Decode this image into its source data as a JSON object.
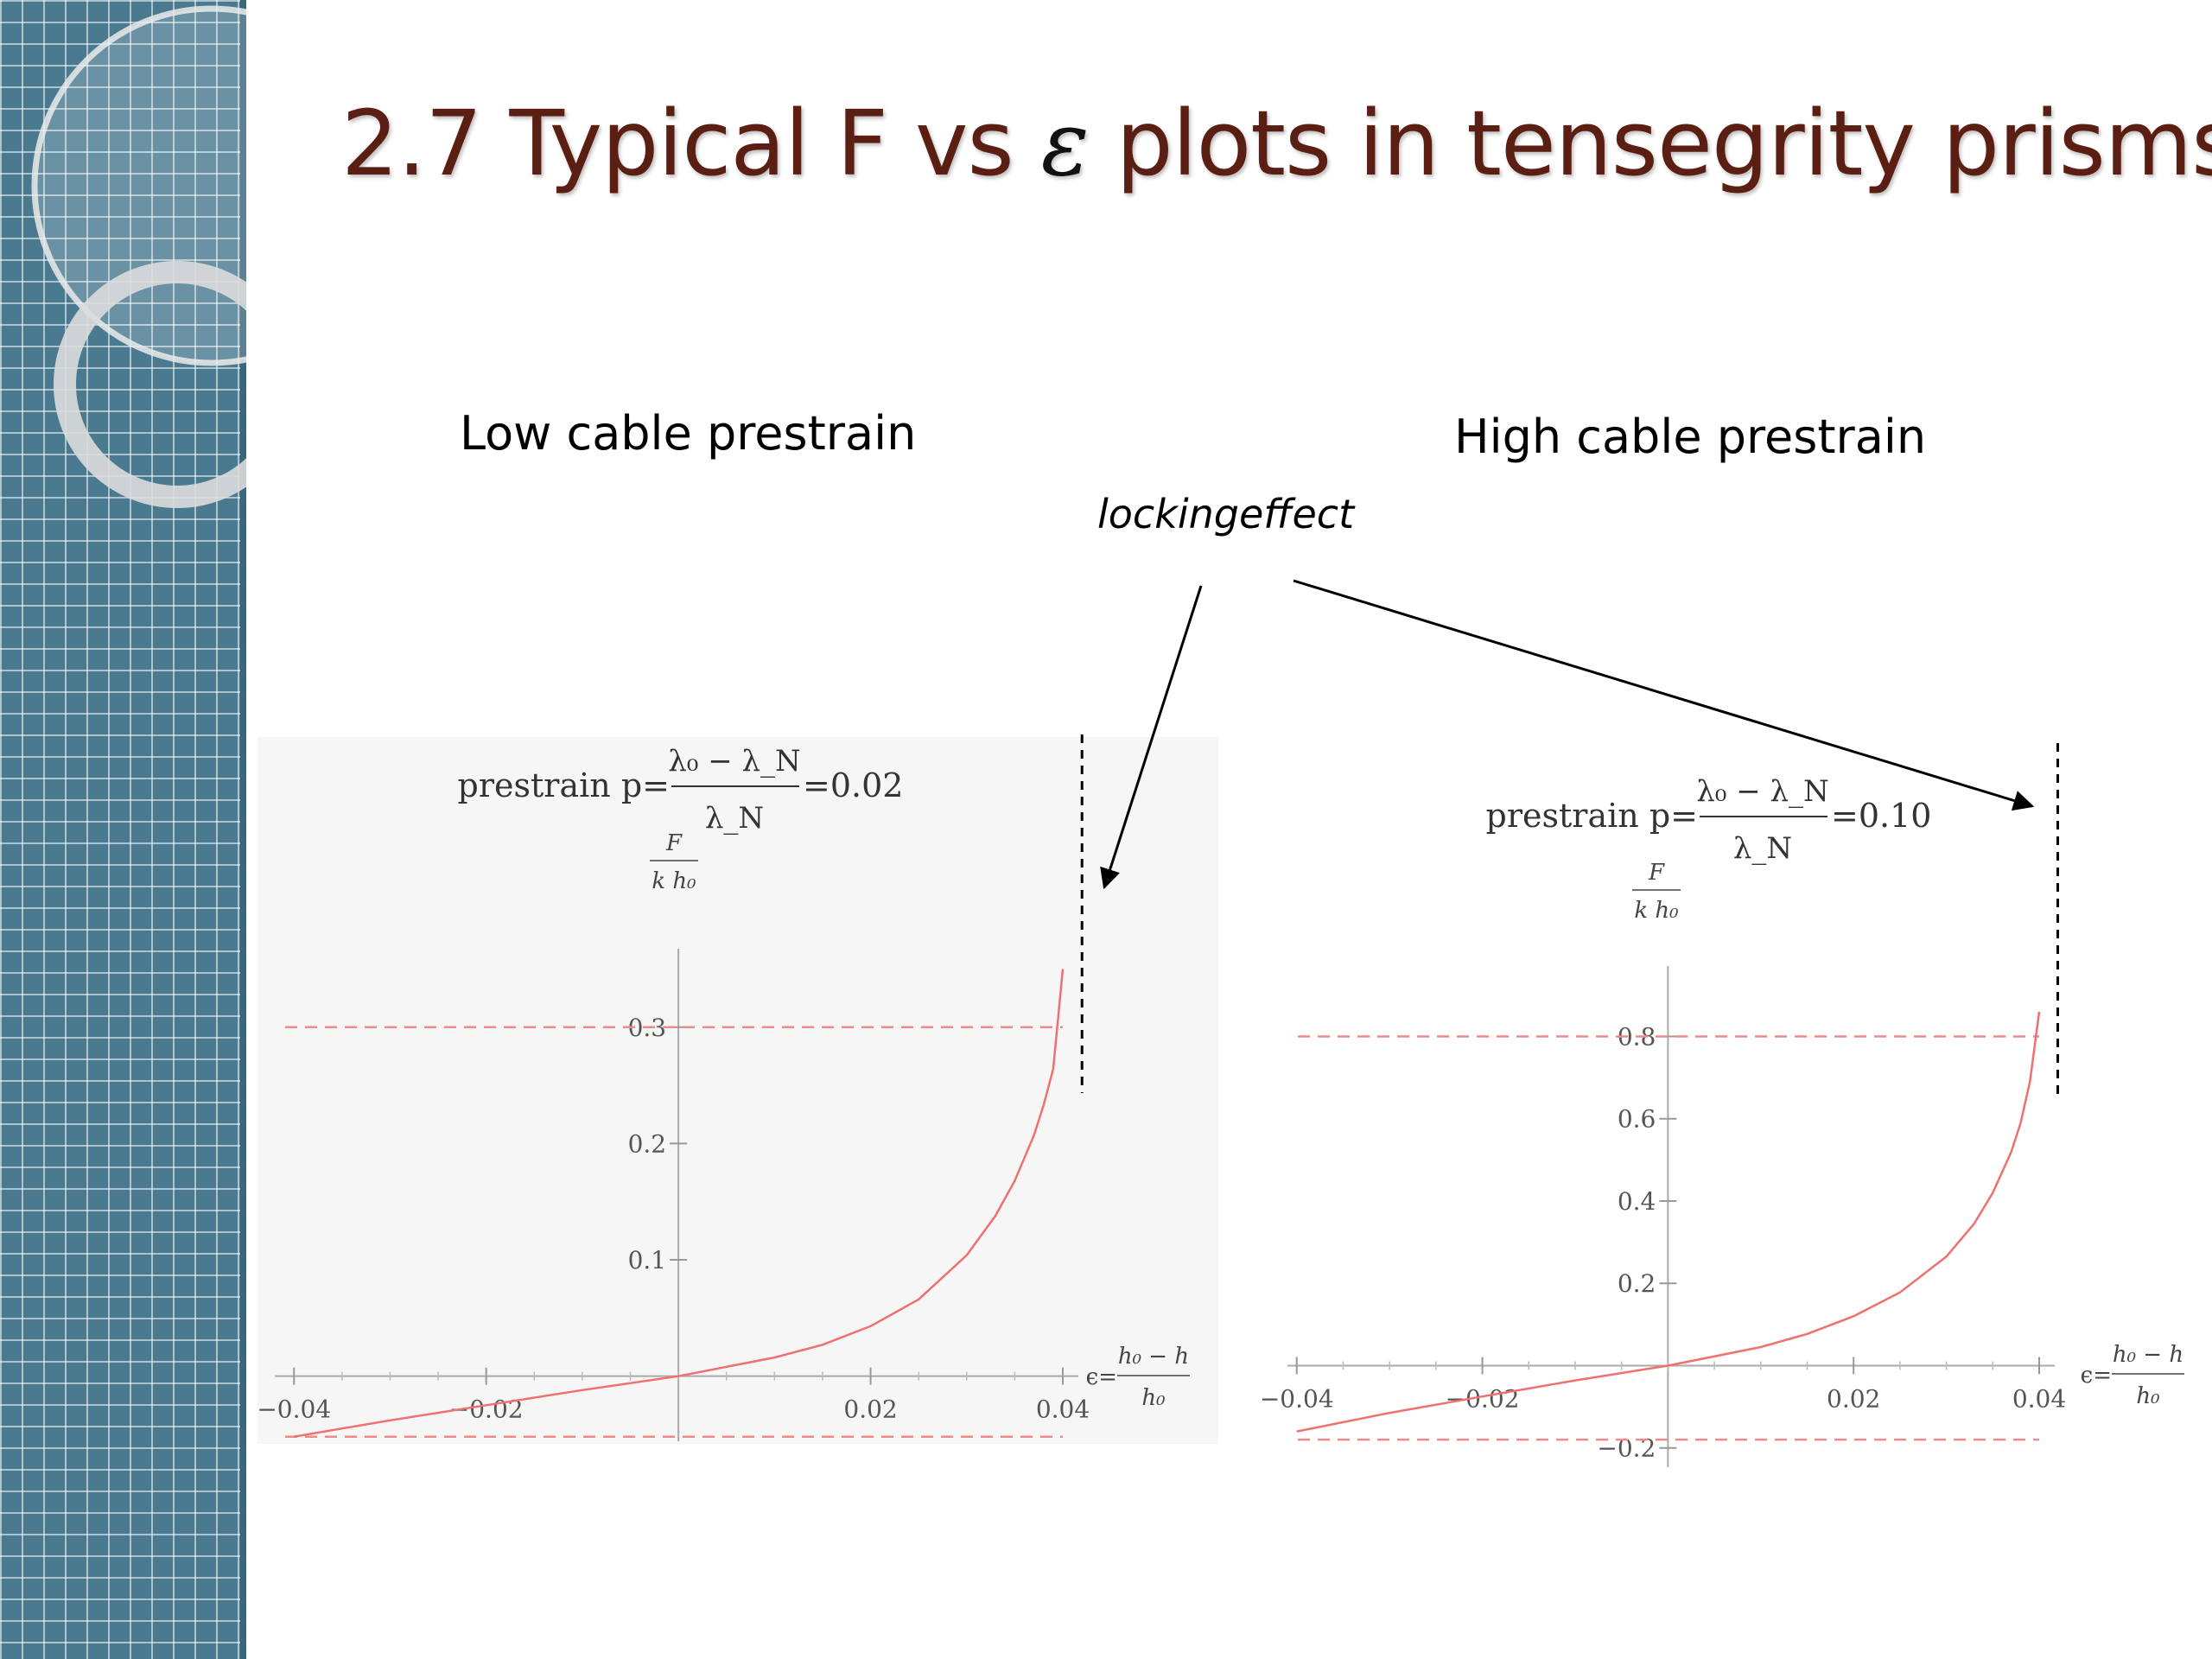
{
  "slide": {
    "title_text": "2.7  Typical F vs",
    "title_symbol": "ε",
    "title_rest": "plots in tensegrity prisms"
  },
  "panels": {
    "left_heading": "Low cable prestrain",
    "right_heading": "High cable prestrain"
  },
  "annotation": {
    "callout": "lockingeffect"
  },
  "chart_data": [
    {
      "type": "line",
      "id": "low",
      "prestrain_prefix": "prestrain p=",
      "prestrain_numer": "λ₀ − λ_N",
      "prestrain_denom": "λ_N",
      "prestrain_value": "=0.02",
      "ylabel_numer": "F",
      "ylabel_denom": "k h₀",
      "xlabel_prefix": "ϵ=",
      "xlabel_numer": "h₀ − h",
      "xlabel_denom": "h₀",
      "xlim": [
        -0.042,
        0.04
      ],
      "ylim": [
        -0.05,
        0.36
      ],
      "xticks": [
        -0.04,
        -0.02,
        0.02,
        0.04
      ],
      "xtick_labels": [
        "−0.04",
        "−0.02",
        "0.02",
        "0.04"
      ],
      "yticks": [
        0.1,
        0.2,
        0.3
      ],
      "ytick_labels": [
        "0.1",
        "0.2",
        "0.3"
      ],
      "reference_lines_y": [
        0.3,
        -0.052
      ],
      "locking_strain": 0.042,
      "series": [
        {
          "x": [
            -0.04,
            -0.03,
            -0.02,
            -0.01,
            0.0,
            0.01,
            0.015,
            0.02,
            0.025,
            0.03,
            0.033,
            0.035,
            0.037,
            0.038,
            0.039,
            0.04
          ],
          "y": [
            -0.052,
            -0.038,
            -0.025,
            -0.012,
            0.0,
            0.016,
            0.027,
            0.043,
            0.066,
            0.104,
            0.138,
            0.168,
            0.207,
            0.233,
            0.264,
            0.35
          ]
        }
      ]
    },
    {
      "type": "line",
      "id": "high",
      "prestrain_prefix": "prestrain p=",
      "prestrain_numer": "λ₀ − λ_N",
      "prestrain_denom": "λ_N",
      "prestrain_value": "=0.10",
      "ylabel_numer": "F",
      "ylabel_denom": "k h₀",
      "xlabel_prefix": "ϵ=",
      "xlabel_numer": "h₀ − h",
      "xlabel_denom": "h₀",
      "xlim": [
        -0.041,
        0.04
      ],
      "ylim": [
        -0.23,
        0.95
      ],
      "xticks": [
        -0.04,
        -0.02,
        0.02,
        0.04
      ],
      "xtick_labels": [
        "−0.04",
        "−0.02",
        "0.02",
        "0.04"
      ],
      "yticks": [
        -0.2,
        0.2,
        0.4,
        0.6,
        0.8
      ],
      "ytick_labels": [
        "−0.2",
        "0.2",
        "0.4",
        "0.6",
        "0.8"
      ],
      "reference_lines_y": [
        0.8,
        -0.18
      ],
      "locking_strain": 0.042,
      "series": [
        {
          "x": [
            -0.04,
            -0.03,
            -0.02,
            -0.01,
            0.0,
            0.01,
            0.015,
            0.02,
            0.025,
            0.03,
            0.033,
            0.035,
            0.037,
            0.038,
            0.039,
            0.04
          ],
          "y": [
            -0.16,
            -0.115,
            -0.075,
            -0.036,
            0.0,
            0.045,
            0.077,
            0.12,
            0.178,
            0.265,
            0.345,
            0.42,
            0.52,
            0.59,
            0.69,
            0.86
          ]
        }
      ]
    }
  ]
}
